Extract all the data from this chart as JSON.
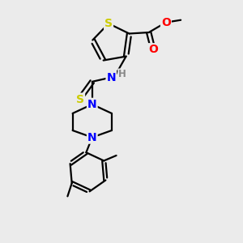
{
  "bg_color": "#ebebeb",
  "atom_colors": {
    "S": "#cccc00",
    "N": "#0000ff",
    "O": "#ff0000",
    "C": "#000000",
    "H": "#888888"
  },
  "bond_color": "#000000",
  "figsize": [
    3.0,
    3.0
  ],
  "dpi": 100,
  "lw": 1.6,
  "fontsize": 9.5
}
